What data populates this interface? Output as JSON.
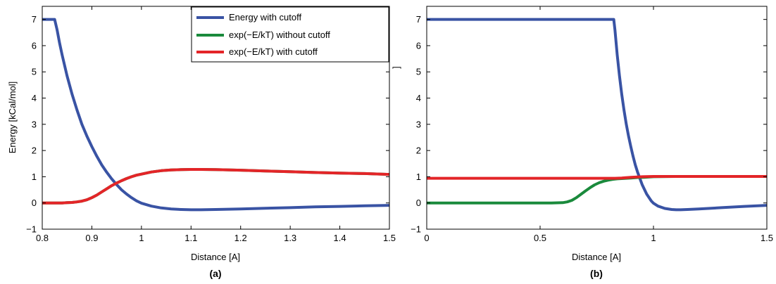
{
  "chart_data": [
    {
      "type": "line",
      "panel_label": "(a)",
      "xlabel": "Distance [A]",
      "ylabel": "Energy [kCal/mol]",
      "xlim": [
        0.8,
        1.5
      ],
      "ylim": [
        -1,
        7.5
      ],
      "xticks": [
        0.8,
        0.9,
        1,
        1.1,
        1.2,
        1.3,
        1.4,
        1.5
      ],
      "xtick_labels": [
        "0.8",
        "0.9",
        "1",
        "1.1",
        "1.2",
        "1.3",
        "1.4",
        "1.5"
      ],
      "yticks": [
        -1,
        0,
        1,
        2,
        3,
        4,
        5,
        6,
        7
      ],
      "ytick_labels": [
        "−1",
        "0",
        "1",
        "2",
        "3",
        "4",
        "5",
        "6",
        "7"
      ],
      "grid": false,
      "legend_position": "top-right",
      "legend": [
        "Energy with cutoff",
        "exp(−E/kT) without cutoff",
        "exp(−E/kT) with cutoff"
      ],
      "series": [
        {
          "name": "Energy with cutoff",
          "color": "#3953a4",
          "x": [
            0.8,
            0.82,
            0.825,
            0.83,
            0.835,
            0.84,
            0.85,
            0.86,
            0.87,
            0.88,
            0.89,
            0.9,
            0.91,
            0.92,
            0.93,
            0.94,
            0.95,
            0.96,
            0.97,
            0.98,
            0.99,
            1.0,
            1.02,
            1.04,
            1.06,
            1.08,
            1.1,
            1.12,
            1.15,
            1.2,
            1.25,
            1.3,
            1.35,
            1.4,
            1.45,
            1.5
          ],
          "y": [
            7,
            7,
            7,
            6.6,
            6.1,
            5.65,
            4.85,
            4.15,
            3.55,
            3.0,
            2.55,
            2.15,
            1.78,
            1.45,
            1.17,
            0.92,
            0.7,
            0.5,
            0.34,
            0.2,
            0.08,
            -0.01,
            -0.12,
            -0.19,
            -0.23,
            -0.25,
            -0.26,
            -0.26,
            -0.25,
            -0.23,
            -0.2,
            -0.18,
            -0.15,
            -0.13,
            -0.11,
            -0.09
          ]
        },
        {
          "name": "exp(−E/kT) without cutoff",
          "color": "#1a8a3c",
          "x": [
            0.8,
            0.82,
            0.84,
            0.85,
            0.86,
            0.87,
            0.88,
            0.89,
            0.9,
            0.91,
            0.92,
            0.93,
            0.94,
            0.95,
            0.96,
            0.97,
            0.98,
            0.99,
            1.0,
            1.02,
            1.04,
            1.06,
            1.08,
            1.1,
            1.12,
            1.15,
            1.2,
            1.25,
            1.3,
            1.35,
            1.4,
            1.45,
            1.5
          ],
          "y": [
            0.0,
            0.0,
            0.0,
            0.01,
            0.02,
            0.04,
            0.07,
            0.12,
            0.2,
            0.3,
            0.42,
            0.54,
            0.66,
            0.76,
            0.85,
            0.93,
            1.0,
            1.06,
            1.1,
            1.18,
            1.23,
            1.26,
            1.27,
            1.28,
            1.28,
            1.27,
            1.25,
            1.22,
            1.19,
            1.16,
            1.14,
            1.12,
            1.09
          ]
        },
        {
          "name": "exp(−E/kT) with cutoff",
          "color": "#e32528",
          "x": [
            0.8,
            0.82,
            0.84,
            0.85,
            0.86,
            0.87,
            0.88,
            0.89,
            0.9,
            0.91,
            0.92,
            0.93,
            0.94,
            0.95,
            0.96,
            0.97,
            0.98,
            0.99,
            1.0,
            1.02,
            1.04,
            1.06,
            1.08,
            1.1,
            1.12,
            1.15,
            1.2,
            1.25,
            1.3,
            1.35,
            1.4,
            1.45,
            1.5
          ],
          "y": [
            0.0,
            0.0,
            0.0,
            0.01,
            0.02,
            0.04,
            0.07,
            0.12,
            0.2,
            0.3,
            0.42,
            0.54,
            0.66,
            0.76,
            0.85,
            0.93,
            1.0,
            1.06,
            1.1,
            1.18,
            1.23,
            1.26,
            1.27,
            1.28,
            1.28,
            1.27,
            1.25,
            1.22,
            1.19,
            1.16,
            1.14,
            1.12,
            1.09
          ]
        }
      ]
    },
    {
      "type": "line",
      "panel_label": "(b)",
      "xlabel": "Distance [A]",
      "ylabel": "]",
      "xlim": [
        0,
        1.5
      ],
      "ylim": [
        -1,
        7.5
      ],
      "xticks": [
        0,
        0.5,
        1,
        1.5
      ],
      "xtick_labels": [
        "0",
        "0.5",
        "1",
        "1.5"
      ],
      "yticks": [
        -1,
        0,
        1,
        2,
        3,
        4,
        5,
        6,
        7
      ],
      "ytick_labels": [
        "−1",
        "0",
        "1",
        "2",
        "3",
        "4",
        "5",
        "6",
        "7"
      ],
      "grid": false,
      "series": [
        {
          "name": "Energy with cutoff",
          "color": "#3953a4",
          "x": [
            0,
            0.2,
            0.4,
            0.6,
            0.8,
            0.825,
            0.83,
            0.84,
            0.85,
            0.86,
            0.87,
            0.88,
            0.89,
            0.9,
            0.91,
            0.92,
            0.93,
            0.95,
            0.97,
            0.99,
            1.0,
            1.02,
            1.05,
            1.08,
            1.1,
            1.12,
            1.15,
            1.2,
            1.3,
            1.4,
            1.5
          ],
          "y": [
            7,
            7,
            7,
            7,
            7,
            7,
            6.6,
            5.65,
            4.85,
            4.15,
            3.55,
            3.0,
            2.55,
            2.15,
            1.78,
            1.45,
            1.17,
            0.7,
            0.34,
            0.08,
            -0.01,
            -0.12,
            -0.21,
            -0.25,
            -0.26,
            -0.26,
            -0.25,
            -0.23,
            -0.18,
            -0.13,
            -0.09
          ]
        },
        {
          "name": "exp(−E/kT) without cutoff",
          "color": "#1a8a3c",
          "x": [
            0,
            0.2,
            0.4,
            0.55,
            0.6,
            0.62,
            0.64,
            0.66,
            0.68,
            0.7,
            0.72,
            0.74,
            0.76,
            0.78,
            0.8,
            0.82,
            0.84,
            0.86,
            0.88,
            0.9,
            0.93,
            0.96,
            1.0,
            1.1,
            1.2,
            1.3,
            1.4,
            1.5
          ],
          "y": [
            0,
            0,
            0,
            0,
            0.01,
            0.04,
            0.1,
            0.2,
            0.33,
            0.46,
            0.58,
            0.69,
            0.77,
            0.83,
            0.87,
            0.9,
            0.92,
            0.93,
            0.94,
            0.95,
            0.97,
            0.98,
            1.0,
            1.01,
            1.01,
            1.01,
            1.01,
            1.01
          ]
        },
        {
          "name": "exp(−E/kT) with cutoff",
          "color": "#e32528",
          "x": [
            0,
            0.2,
            0.4,
            0.6,
            0.7,
            0.8,
            0.83,
            0.86,
            0.9,
            0.95,
            1.0,
            1.1,
            1.2,
            1.3,
            1.4,
            1.5
          ],
          "y": [
            0.94,
            0.94,
            0.94,
            0.94,
            0.94,
            0.94,
            0.94,
            0.95,
            0.98,
            1.0,
            1.01,
            1.01,
            1.01,
            1.01,
            1.01,
            1.01
          ]
        }
      ]
    }
  ]
}
